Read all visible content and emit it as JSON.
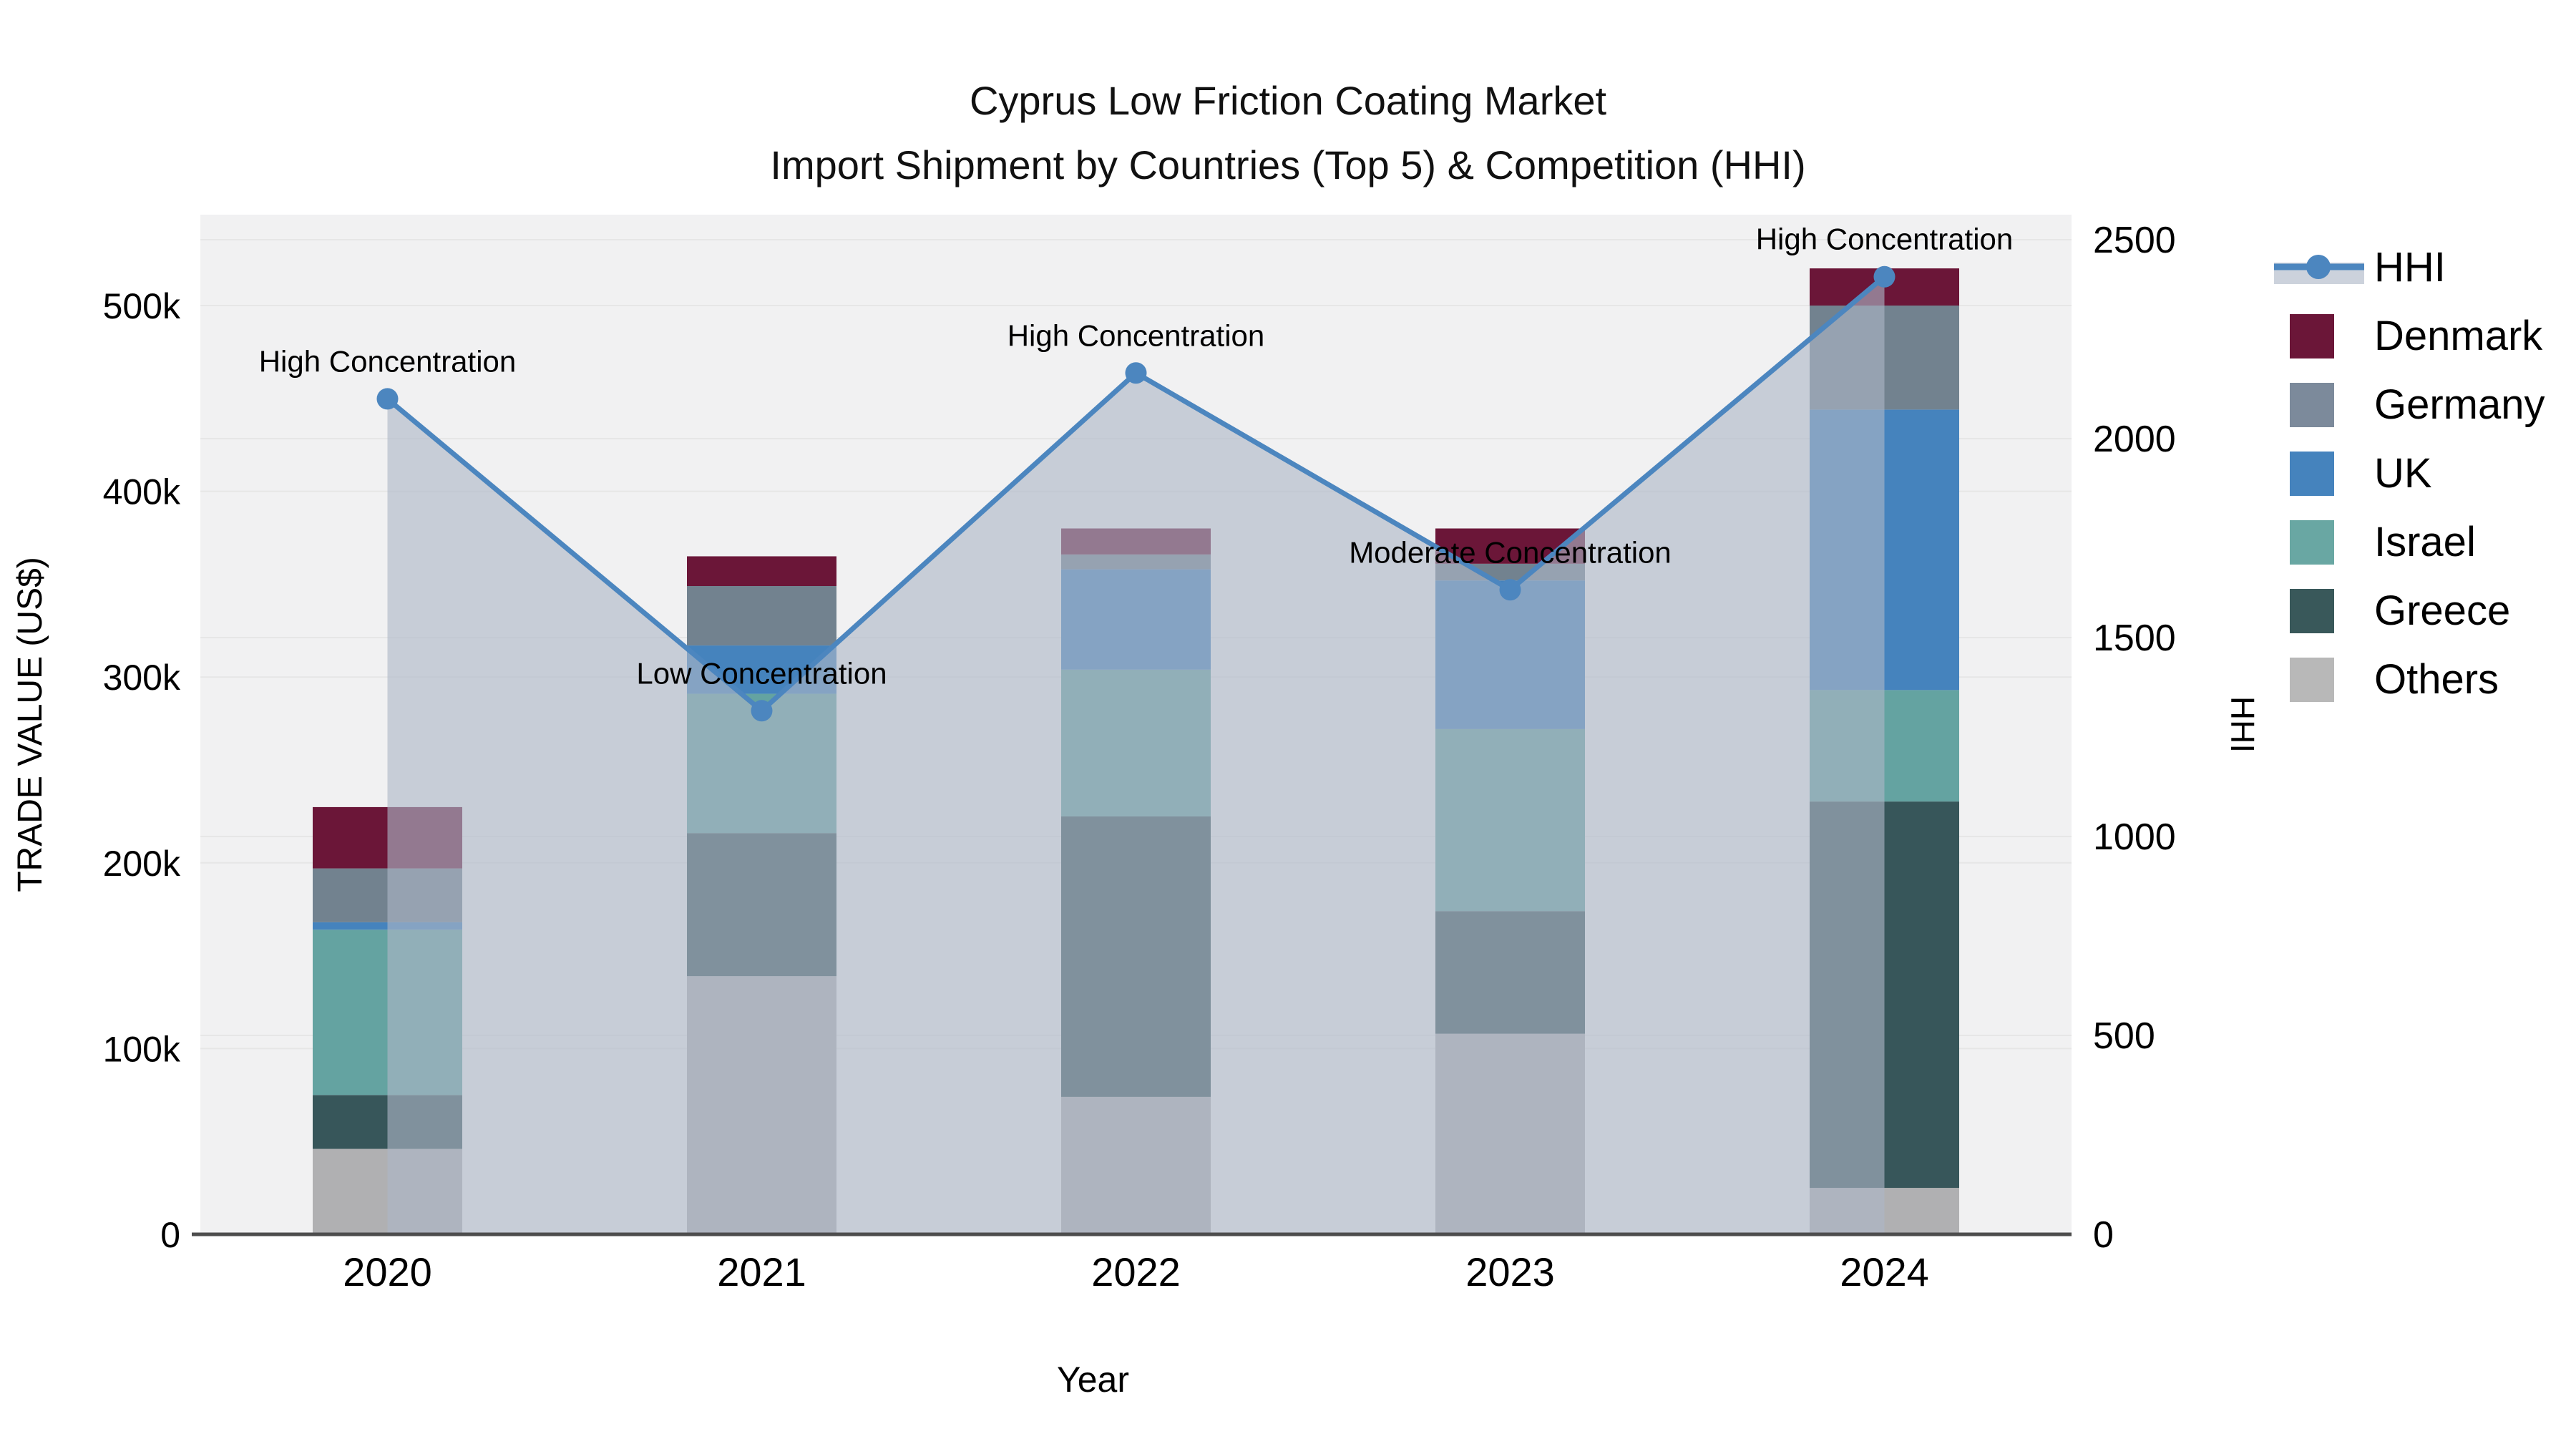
{
  "title": {
    "line1": "Cyprus Low Friction Coating Market",
    "line2": "Import Shipment by Countries (Top 5) & Competition (HHI)"
  },
  "chart_data": {
    "type": "bar+line",
    "categories": [
      "2020",
      "2021",
      "2022",
      "2023",
      "2024"
    ],
    "xlabel": "Year",
    "ylabel_left": "TRADE VALUE (US$)",
    "ylabel_right": "HHI",
    "y_left_axis": {
      "min": 0,
      "max": 540000,
      "ticks": [
        {
          "v": 0,
          "label": "0"
        },
        {
          "v": 100000,
          "label": "100k"
        },
        {
          "v": 200000,
          "label": "200k"
        },
        {
          "v": 300000,
          "label": "300k"
        },
        {
          "v": 400000,
          "label": "400k"
        },
        {
          "v": 500000,
          "label": "500k"
        }
      ]
    },
    "y_right_axis": {
      "min": 0,
      "max": 2500,
      "ticks": [
        {
          "v": 0,
          "label": "0"
        },
        {
          "v": 500,
          "label": "500"
        },
        {
          "v": 1000,
          "label": "1000"
        },
        {
          "v": 1500,
          "label": "1500"
        },
        {
          "v": 2000,
          "label": "2000"
        },
        {
          "v": 2500,
          "label": "2500"
        }
      ]
    },
    "stack_series": [
      {
        "name": "Others",
        "color": "#B0B0B2",
        "values": [
          46000,
          139000,
          74000,
          108000,
          25000
        ]
      },
      {
        "name": "Greece",
        "color": "#37565A",
        "values": [
          29000,
          77000,
          151000,
          66000,
          208000
        ]
      },
      {
        "name": "Israel",
        "color": "#64A3A1",
        "values": [
          89000,
          75000,
          79000,
          98000,
          60000
        ]
      },
      {
        "name": "UK",
        "color": "#4583BD",
        "values": [
          4000,
          26000,
          54000,
          80000,
          151000
        ]
      },
      {
        "name": "Germany",
        "color": "#72828F",
        "values": [
          29000,
          32000,
          8000,
          9000,
          56000
        ]
      },
      {
        "name": "Denmark",
        "color": "#6B1638",
        "values": [
          33000,
          16000,
          14000,
          19000,
          20000
        ]
      }
    ],
    "totals": [
      230000,
      365000,
      380000,
      380000,
      520000
    ],
    "hhi_series": {
      "name": "HHI",
      "color": "#4C86BF",
      "area_fill": "rgba(172,182,198,0.62)",
      "values": [
        2100,
        1316,
        2165,
        1620,
        2407
      ]
    },
    "annotations": [
      {
        "year": "2020",
        "text": "High Concentration"
      },
      {
        "year": "2021",
        "text": "Low Concentration"
      },
      {
        "year": "2022",
        "text": "High Concentration"
      },
      {
        "year": "2023",
        "text": "Moderate Concentration"
      },
      {
        "year": "2024",
        "text": "High Concentration"
      }
    ],
    "legend": {
      "items": [
        {
          "label": "HHI",
          "type": "line",
          "color": "#4C86BF"
        },
        {
          "label": "Denmark",
          "type": "swatch",
          "color": "#6B1638"
        },
        {
          "label": "Germany",
          "type": "swatch",
          "color": "#7C8A9B"
        },
        {
          "label": "UK",
          "type": "swatch",
          "color": "#4583BD"
        },
        {
          "label": "Israel",
          "type": "swatch",
          "color": "#69A7A3"
        },
        {
          "label": "Greece",
          "type": "swatch",
          "color": "#39585A"
        },
        {
          "label": "Others",
          "type": "swatch",
          "color": "#B8B8B8"
        }
      ]
    },
    "style": {
      "plot_bg": "#F1F1F2",
      "gridline": "#E6E6E6",
      "axis_line": "#4D4D4D",
      "text_color": "#000000"
    }
  }
}
